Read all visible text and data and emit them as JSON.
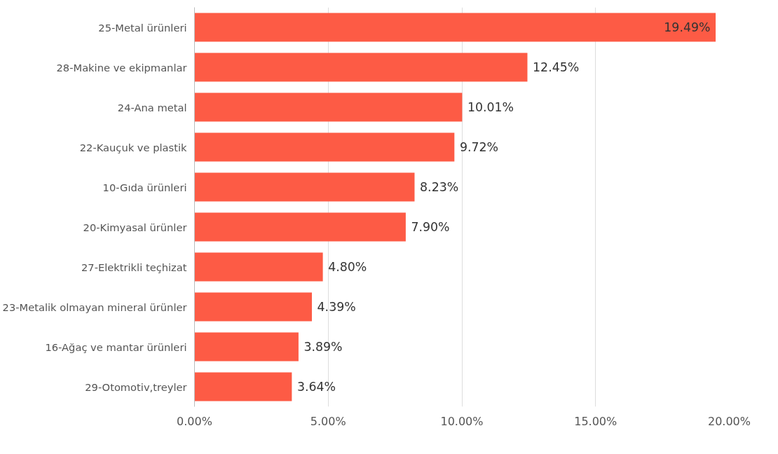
{
  "chart_data": {
    "type": "bar",
    "orientation": "horizontal",
    "categories": [
      "25-Metal ürünleri",
      "28-Makine ve ekipmanlar",
      "24-Ana metal",
      "22-Kauçuk ve plastik",
      "10-Gıda ürünleri",
      "20-Kimyasal ürünler",
      "27-Elektrikli teçhizat",
      "23-Metalik olmayan mineral ürünler",
      "16-Ağaç ve mantar ürünleri",
      "29-Otomotiv,treyler"
    ],
    "values": [
      19.49,
      12.45,
      10.01,
      9.72,
      8.23,
      7.9,
      4.8,
      4.39,
      3.89,
      3.64
    ],
    "value_labels": [
      "19.49%",
      "12.45%",
      "10.01%",
      "9.72%",
      "8.23%",
      "7.90%",
      "4.80%",
      "4.39%",
      "3.89%",
      "3.64%"
    ],
    "color": "#fd5b45",
    "xlim": [
      0,
      20
    ],
    "xticks": [
      {
        "value": 0,
        "label": "0.00%"
      },
      {
        "value": 5,
        "label": "5.00%"
      },
      {
        "value": 10,
        "label": "10.00%"
      },
      {
        "value": 15,
        "label": "15.00%"
      },
      {
        "value": 20,
        "label": "20.00%"
      }
    ],
    "grid": "x"
  }
}
